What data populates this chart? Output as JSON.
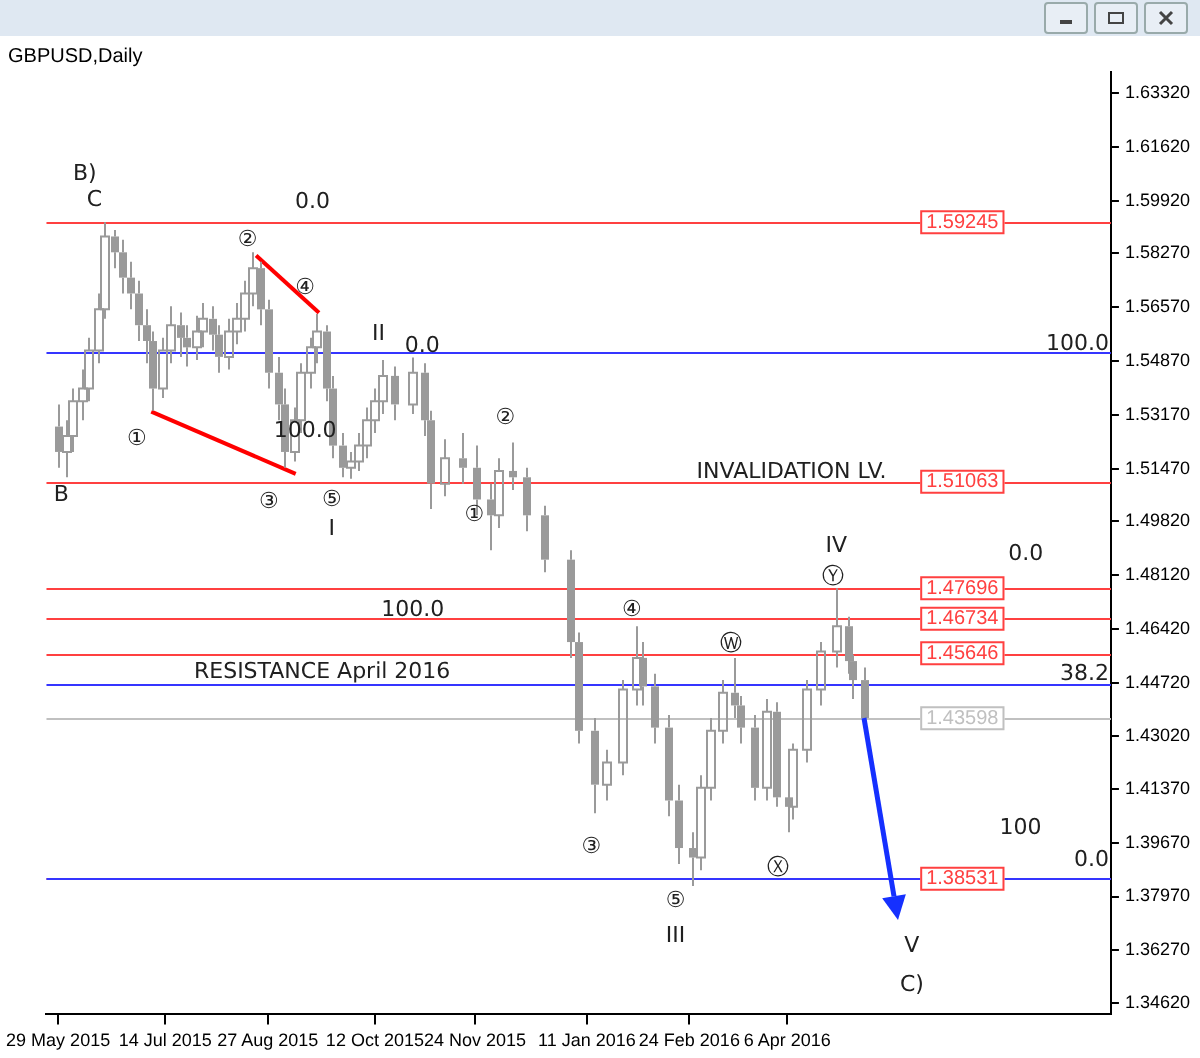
{
  "chart_data": {
    "type": "candlestick",
    "title": "GBPUSD,Daily",
    "color": "#9a9a9a",
    "legend": false,
    "grid": false,
    "xlim": [
      "2015-05-24",
      "2016-08-23"
    ],
    "xticks": [
      {
        "value": "2015-05-29",
        "label": "29 May 2015"
      },
      {
        "value": "2015-07-14",
        "label": "14 Jul 2015"
      },
      {
        "value": "2015-08-27",
        "label": "27 Aug 2015"
      },
      {
        "value": "2015-10-12",
        "label": "12 Oct 2015"
      },
      {
        "value": "2015-11-24",
        "label": "24 Nov 2015"
      },
      {
        "value": "2016-01-11",
        "label": "11 Jan 2016"
      },
      {
        "value": "2016-02-24",
        "label": "24 Feb 2016"
      },
      {
        "value": "2016-04-06",
        "label": "6 Apr 2016"
      }
    ],
    "ylim": [
      1.3425,
      1.6399
    ],
    "yticks": [
      {
        "value": 1.6332,
        "label": "1.63320"
      },
      {
        "value": 1.6162,
        "label": "1.61620"
      },
      {
        "value": 1.5992,
        "label": "1.59920"
      },
      {
        "value": 1.5827,
        "label": "1.58270"
      },
      {
        "value": 1.5657,
        "label": "1.56570"
      },
      {
        "value": 1.5487,
        "label": "1.54870"
      },
      {
        "value": 1.5317,
        "label": "1.53170"
      },
      {
        "value": 1.5147,
        "label": "1.51470"
      },
      {
        "value": 1.4982,
        "label": "1.49820"
      },
      {
        "value": 1.4812,
        "label": "1.48120"
      },
      {
        "value": 1.4642,
        "label": "1.46420"
      },
      {
        "value": 1.4472,
        "label": "1.44720"
      },
      {
        "value": 1.4302,
        "label": "1.43020"
      },
      {
        "value": 1.4137,
        "label": "1.41370"
      },
      {
        "value": 1.3967,
        "label": "1.39670"
      },
      {
        "value": 1.3797,
        "label": "1.37970"
      },
      {
        "value": 1.3627,
        "label": "1.36270"
      },
      {
        "value": 1.3462,
        "label": "1.34620"
      }
    ],
    "x": [
      "2015-05-29",
      "2015-06-01",
      "2015-06-04",
      "2015-06-08",
      "2015-06-11",
      "2015-06-15",
      "2015-06-18",
      "2015-06-22",
      "2015-06-25",
      "2015-06-29",
      "2015-07-02",
      "2015-07-06",
      "2015-07-08",
      "2015-07-13",
      "2015-07-16",
      "2015-07-20",
      "2015-07-23",
      "2015-07-27",
      "2015-07-30",
      "2015-08-03",
      "2015-08-06",
      "2015-08-10",
      "2015-08-13",
      "2015-08-17",
      "2015-08-20",
      "2015-08-24",
      "2015-08-27",
      "2015-08-31",
      "2015-09-03",
      "2015-09-07",
      "2015-09-10",
      "2015-09-14",
      "2015-09-17",
      "2015-09-21",
      "2015-09-24",
      "2015-09-28",
      "2015-10-01",
      "2015-10-05",
      "2015-10-08",
      "2015-10-12",
      "2015-10-15",
      "2015-10-20",
      "2015-10-28",
      "2015-11-02",
      "2015-11-05",
      "2015-11-11",
      "2015-11-18",
      "2015-11-24",
      "2015-11-30",
      "2015-12-04",
      "2015-12-10",
      "2015-12-16",
      "2015-12-24",
      "2016-01-04",
      "2016-01-07",
      "2016-01-14",
      "2016-01-19",
      "2016-01-26",
      "2016-02-01",
      "2016-02-04",
      "2016-02-09",
      "2016-02-15",
      "2016-02-19",
      "2016-02-25",
      "2016-02-29",
      "2016-03-04",
      "2016-03-09",
      "2016-03-14",
      "2016-03-17",
      "2016-03-23",
      "2016-03-28",
      "2016-04-01",
      "2016-04-06",
      "2016-04-08",
      "2016-04-14",
      "2016-04-20",
      "2016-04-27",
      "2016-05-02",
      "2016-05-04",
      "2016-05-09"
    ],
    "ohlc": [
      [
        1.528,
        1.535,
        1.515,
        1.52
      ],
      [
        1.52,
        1.53,
        1.512,
        1.525
      ],
      [
        1.525,
        1.54,
        1.52,
        1.536
      ],
      [
        1.536,
        1.546,
        1.53,
        1.54
      ],
      [
        1.54,
        1.556,
        1.536,
        1.552
      ],
      [
        1.552,
        1.57,
        1.548,
        1.565
      ],
      [
        1.565,
        1.5925,
        1.562,
        1.588
      ],
      [
        1.588,
        1.59,
        1.578,
        1.583
      ],
      [
        1.583,
        1.587,
        1.57,
        1.575
      ],
      [
        1.575,
        1.58,
        1.565,
        1.57
      ],
      [
        1.57,
        1.574,
        1.555,
        1.56
      ],
      [
        1.56,
        1.565,
        1.548,
        1.555
      ],
      [
        1.555,
        1.558,
        1.533,
        1.54
      ],
      [
        1.54,
        1.556,
        1.537,
        1.552
      ],
      [
        1.552,
        1.566,
        1.548,
        1.56
      ],
      [
        1.56,
        1.564,
        1.55,
        1.556
      ],
      [
        1.556,
        1.56,
        1.547,
        1.553
      ],
      [
        1.553,
        1.563,
        1.549,
        1.558
      ],
      [
        1.558,
        1.567,
        1.553,
        1.562
      ],
      [
        1.562,
        1.566,
        1.552,
        1.557
      ],
      [
        1.557,
        1.56,
        1.545,
        1.55
      ],
      [
        1.55,
        1.562,
        1.546,
        1.558
      ],
      [
        1.558,
        1.567,
        1.554,
        1.562
      ],
      [
        1.562,
        1.574,
        1.558,
        1.57
      ],
      [
        1.57,
        1.583,
        1.566,
        1.578
      ],
      [
        1.578,
        1.58,
        1.56,
        1.565
      ],
      [
        1.565,
        1.568,
        1.54,
        1.545
      ],
      [
        1.545,
        1.55,
        1.53,
        1.535
      ],
      [
        1.535,
        1.54,
        1.515,
        1.52
      ],
      [
        1.52,
        1.534,
        1.517,
        1.53
      ],
      [
        1.53,
        1.548,
        1.526,
        1.545
      ],
      [
        1.545,
        1.556,
        1.54,
        1.553
      ],
      [
        1.553,
        1.5635,
        1.548,
        1.558
      ],
      [
        1.558,
        1.56,
        1.536,
        1.54
      ],
      [
        1.54,
        1.544,
        1.518,
        1.522
      ],
      [
        1.522,
        1.526,
        1.512,
        1.515
      ],
      [
        1.515,
        1.52,
        1.5115,
        1.517
      ],
      [
        1.517,
        1.526,
        1.514,
        1.522
      ],
      [
        1.522,
        1.534,
        1.518,
        1.53
      ],
      [
        1.53,
        1.54,
        1.526,
        1.536
      ],
      [
        1.536,
        1.549,
        1.532,
        1.544
      ],
      [
        1.544,
        1.547,
        1.53,
        1.535
      ],
      [
        1.535,
        1.5498,
        1.532,
        1.545
      ],
      [
        1.545,
        1.548,
        1.525,
        1.53
      ],
      [
        1.53,
        1.533,
        1.502,
        1.51
      ],
      [
        1.51,
        1.524,
        1.506,
        1.518
      ],
      [
        1.518,
        1.526,
        1.51,
        1.515
      ],
      [
        1.515,
        1.522,
        1.5,
        1.505
      ],
      [
        1.505,
        1.51,
        1.489,
        1.5
      ],
      [
        1.5,
        1.518,
        1.496,
        1.514
      ],
      [
        1.514,
        1.523,
        1.508,
        1.512
      ],
      [
        1.512,
        1.515,
        1.495,
        1.5
      ],
      [
        1.5,
        1.503,
        1.482,
        1.486
      ],
      [
        1.486,
        1.489,
        1.455,
        1.46
      ],
      [
        1.46,
        1.463,
        1.428,
        1.432
      ],
      [
        1.432,
        1.436,
        1.406,
        1.415
      ],
      [
        1.415,
        1.426,
        1.41,
        1.422
      ],
      [
        1.422,
        1.448,
        1.418,
        1.445
      ],
      [
        1.445,
        1.465,
        1.44,
        1.455
      ],
      [
        1.455,
        1.46,
        1.44,
        1.446
      ],
      [
        1.446,
        1.45,
        1.428,
        1.433
      ],
      [
        1.433,
        1.437,
        1.405,
        1.41
      ],
      [
        1.41,
        1.415,
        1.39,
        1.395
      ],
      [
        1.395,
        1.4,
        1.383,
        1.392
      ],
      [
        1.392,
        1.418,
        1.388,
        1.414
      ],
      [
        1.414,
        1.436,
        1.41,
        1.432
      ],
      [
        1.432,
        1.448,
        1.428,
        1.444
      ],
      [
        1.444,
        1.455,
        1.436,
        1.44
      ],
      [
        1.44,
        1.443,
        1.428,
        1.433
      ],
      [
        1.433,
        1.437,
        1.41,
        1.414
      ],
      [
        1.414,
        1.442,
        1.41,
        1.438
      ],
      [
        1.438,
        1.441,
        1.408,
        1.411
      ],
      [
        1.411,
        1.415,
        1.4,
        1.408
      ],
      [
        1.408,
        1.428,
        1.404,
        1.426
      ],
      [
        1.426,
        1.448,
        1.422,
        1.445
      ],
      [
        1.445,
        1.46,
        1.44,
        1.457
      ],
      [
        1.457,
        1.477,
        1.452,
        1.465
      ],
      [
        1.465,
        1.468,
        1.45,
        1.454
      ],
      [
        1.454,
        1.456,
        1.442,
        1.448
      ],
      [
        1.448,
        1.452,
        1.434,
        1.436
      ]
    ],
    "series": [
      {
        "type": "line",
        "color": "#ff0000",
        "x": [
          "2015-07-08",
          "2015-09-08"
        ],
        "values": [
          1.5327,
          1.5131
        ]
      },
      {
        "type": "line",
        "color": "#ff0000",
        "x": [
          "2015-08-22",
          "2015-09-18"
        ],
        "values": [
          1.582,
          1.5639
        ]
      }
    ],
    "ref_lines": [
      {
        "axis": "y",
        "value": 1.59245,
        "label": "1.59245",
        "color": "#ff4040"
      },
      {
        "axis": "y",
        "value": 1.51063,
        "label": "1.51063",
        "color": "#ff4040"
      },
      {
        "axis": "y",
        "value": 1.47696,
        "label": "1.47696",
        "color": "#ff4040"
      },
      {
        "axis": "y",
        "value": 1.46734,
        "label": "1.46734",
        "color": "#ff4040"
      },
      {
        "axis": "y",
        "value": 1.45646,
        "label": "1.45646",
        "color": "#ff4040"
      },
      {
        "axis": "y",
        "value": 1.38531,
        "label": "1.38531",
        "color": "#ff4040"
      },
      {
        "axis": "y",
        "value": 1.43598,
        "label": "1.43598",
        "color": "#c0c0c0"
      },
      {
        "axis": "y",
        "value": 1.5515,
        "color": "#3535ff"
      },
      {
        "axis": "y",
        "value": 1.4468,
        "color": "#3535ff"
      },
      {
        "axis": "y",
        "value": 1.3853,
        "color": "#3535ff"
      }
    ],
    "annotations": [
      "B)",
      "C",
      "B",
      "①",
      "②",
      "④",
      "③",
      "⑤",
      "I",
      "II",
      "①",
      "②",
      "③",
      "④",
      "⑤",
      "III",
      "Ⓦ",
      "Ⓧ",
      "Ⓨ",
      "IV",
      "V",
      "C)",
      "INVALIDATION LV.",
      "RESISTANCE April 2016",
      "0.0",
      "100.0",
      "0.0",
      "100.0",
      "0.0",
      "100",
      "100.0",
      "38.2",
      "0.0"
    ]
  }
}
